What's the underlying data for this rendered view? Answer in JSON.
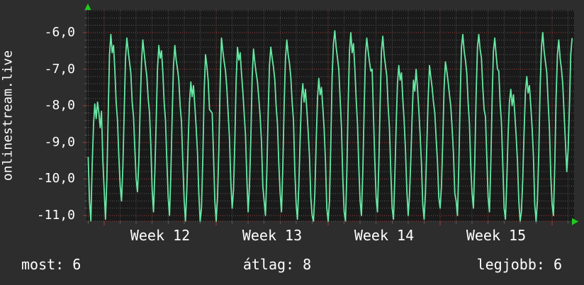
{
  "app": {
    "background": "#2d2d2d",
    "text_color": "#ffffff"
  },
  "footer": {
    "most": "most: 6",
    "atlag": "átlag: 8",
    "legjobb": "legjobb: 6"
  },
  "chart_data": {
    "type": "line",
    "title": "onlinestream.live",
    "legend_position": "none",
    "grid": {
      "plot_background": "#1a1a1a",
      "minor_color": "#565656",
      "major_color": "#a04040",
      "grid_on": true,
      "minor_x_unit": "day",
      "major_x_unit": "week"
    },
    "arrow_color": "#1dcc1d",
    "xaxis": {
      "tick_labels": [
        "Week 12",
        "Week 13",
        "Week 14",
        "Week 15"
      ]
    },
    "yaxis": {
      "tick_labels": [
        "-6,0",
        "-7,0",
        "-8,0",
        "-9,0",
        "-10,0",
        "-11,0"
      ],
      "tick_values": [
        -6,
        -7,
        -8,
        -9,
        -10,
        -11
      ],
      "minor_step": 0.2,
      "ylim": [
        -11.16,
        -5.38
      ]
    },
    "series": [
      {
        "name": "onlinestream.live",
        "color": "#66e9a4",
        "samples_per_day": 12,
        "start_day": 0,
        "values": [
          -9.4,
          -10.6,
          -11.15,
          -9.6,
          -8.5,
          -7.95,
          -8.35,
          -7.9,
          -8.2,
          -8.6,
          -8.15,
          -9.5,
          -10.3,
          -11.1,
          -10.0,
          -8.3,
          -6.6,
          -6.05,
          -6.55,
          -6.35,
          -7.0,
          -7.9,
          -8.4,
          -9.4,
          -10.2,
          -10.6,
          -9.7,
          -8.2,
          -6.7,
          -6.15,
          -6.5,
          -6.8,
          -7.1,
          -7.9,
          -8.3,
          -9.2,
          -10.0,
          -10.35,
          -9.5,
          -8.0,
          -6.8,
          -6.2,
          -6.55,
          -6.9,
          -7.2,
          -7.8,
          -8.2,
          -9.1,
          -10.3,
          -10.9,
          -9.8,
          -8.4,
          -7.0,
          -6.35,
          -6.7,
          -6.5,
          -7.1,
          -7.9,
          -8.4,
          -9.5,
          -10.5,
          -11.0,
          -9.9,
          -8.3,
          -6.9,
          -6.35,
          -6.75,
          -7.0,
          -7.3,
          -8.0,
          -8.45,
          -9.6,
          -10.6,
          -11.15,
          -10.3,
          -9.0,
          -7.9,
          -7.35,
          -7.75,
          -7.45,
          -8.0,
          -8.6,
          -9.3,
          -10.4,
          -11.2,
          -10.8,
          -9.4,
          -7.6,
          -6.6,
          -6.9,
          -7.3,
          -8.1,
          -8.15,
          -8.2,
          -9.3,
          -10.6,
          -11.2,
          -10.5,
          -9.2,
          -7.4,
          -6.15,
          -6.5,
          -6.8,
          -7.05,
          -7.5,
          -8.2,
          -8.9,
          -10.1,
          -10.8,
          -10.3,
          -9.0,
          -7.3,
          -6.4,
          -6.75,
          -6.55,
          -7.1,
          -7.6,
          -8.2,
          -8.8,
          -10.0,
          -10.9,
          -10.2,
          -8.9,
          -7.2,
          -6.45,
          -6.8,
          -7.1,
          -7.35,
          -7.8,
          -8.3,
          -9.0,
          -10.2,
          -10.6,
          -11.0,
          -9.8,
          -8.2,
          -6.9,
          -6.4,
          -6.7,
          -6.95,
          -7.3,
          -8.0,
          -8.5,
          -9.6,
          -10.4,
          -10.9,
          -9.7,
          -8.0,
          -6.7,
          -6.2,
          -6.6,
          -6.85,
          -7.2,
          -7.9,
          -8.4,
          -9.8,
          -10.7,
          -11.1,
          -10.2,
          -8.9,
          -7.8,
          -7.4,
          -7.9,
          -7.55,
          -8.1,
          -8.7,
          -9.4,
          -10.5,
          -11.0,
          -11.2,
          -10.4,
          -9.0,
          -7.8,
          -7.25,
          -7.7,
          -7.5,
          -8.05,
          -8.65,
          -9.5,
          -10.8,
          -11.2,
          -10.6,
          -9.0,
          -7.2,
          -6.3,
          -5.95,
          -6.4,
          -6.7,
          -7.0,
          -7.8,
          -8.6,
          -10.0,
          -10.9,
          -11.15,
          -9.9,
          -8.0,
          -6.5,
          -6.0,
          -6.55,
          -6.3,
          -6.95,
          -7.8,
          -8.5,
          -9.7,
          -10.6,
          -11.0,
          -9.8,
          -8.1,
          -6.6,
          -6.15,
          -6.5,
          -6.8,
          -7.05,
          -7.0,
          -8.3,
          -9.5,
          -10.5,
          -10.9,
          -9.6,
          -7.9,
          -6.5,
          -6.1,
          -6.6,
          -6.9,
          -7.2,
          -8.0,
          -8.6,
          -9.8,
          -10.8,
          -11.1,
          -10.0,
          -8.6,
          -7.4,
          -6.9,
          -7.3,
          -7.1,
          -7.8,
          -8.4,
          -9.2,
          -10.3,
          -11.0,
          -10.5,
          -9.5,
          -8.3,
          -7.3,
          -7.6,
          -7.0,
          -7.5,
          -8.1,
          -8.8,
          -9.6,
          -10.7,
          -11.1,
          -10.4,
          -9.1,
          -7.8,
          -6.9,
          -7.2,
          -7.5,
          -7.9,
          -8.2,
          -8.9,
          -9.5,
          -10.5,
          -10.8,
          -10.2,
          -8.9,
          -7.5,
          -6.8,
          -7.05,
          -7.35,
          -7.7,
          -8.0,
          -8.6,
          -9.3,
          -10.4,
          -10.6,
          -11.0,
          -9.7,
          -7.9,
          -6.4,
          -6.05,
          -6.5,
          -6.75,
          -7.1,
          -7.9,
          -8.5,
          -9.7,
          -10.4,
          -10.8,
          -9.5,
          -7.7,
          -6.4,
          -6.05,
          -6.45,
          -6.7,
          -7.5,
          -8.1,
          -8.3,
          -9.4,
          -10.5,
          -10.9,
          -9.6,
          -7.8,
          -6.5,
          -6.15,
          -6.6,
          -7.0,
          -7.05,
          -7.9,
          -8.45,
          -9.6,
          -10.8,
          -11.1,
          -10.1,
          -8.8,
          -7.9,
          -7.55,
          -8.0,
          -7.7,
          -8.2,
          -8.8,
          -9.5,
          -10.6,
          -11.15,
          -10.9,
          -10.0,
          -8.7,
          -7.6,
          -7.2,
          -7.65,
          -7.45,
          -8.0,
          -8.6,
          -9.4,
          -10.7,
          -11.2,
          -10.6,
          -9.3,
          -7.5,
          -6.4,
          -6.0,
          -6.5,
          -6.8,
          -7.1,
          -7.9,
          -8.6,
          -9.9,
          -10.7,
          -11.0,
          -9.6,
          -7.8,
          -6.6,
          -6.2,
          -6.7,
          -7.0,
          -7.4,
          -8.2,
          -9.0,
          -9.8,
          -9.2,
          -8.0,
          -6.6,
          -6.15
        ]
      }
    ]
  }
}
